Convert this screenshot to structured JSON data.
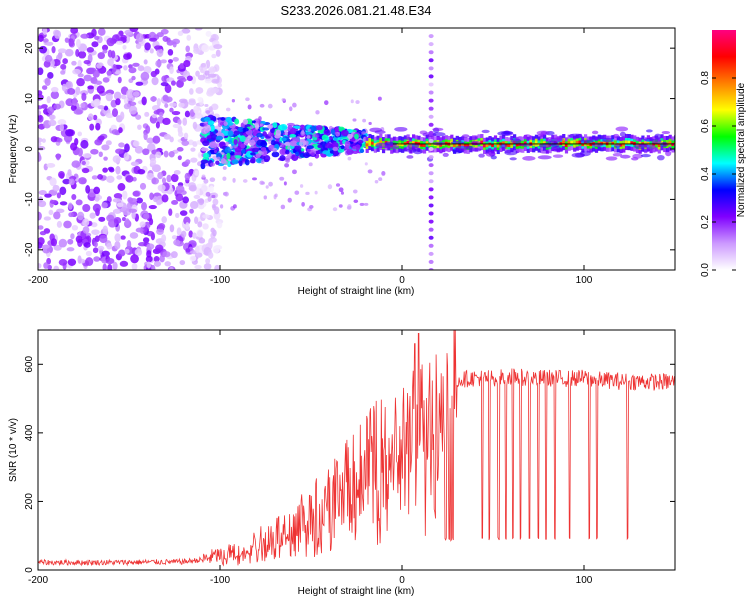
{
  "figure_title": "S233.2026.081.21.48.E34",
  "chart_data": [
    {
      "type": "heatmap",
      "title": "S233.2026.081.21.48.E34",
      "xlabel": "Height of straight line (km)",
      "ylabel": "Frequency (Hz)",
      "xlim": [
        -200,
        150
      ],
      "ylim": [
        -24,
        24
      ],
      "xticks": [
        -200,
        -100,
        0,
        100
      ],
      "yticks": [
        -20,
        -10,
        0,
        10,
        20
      ],
      "colorbar": {
        "label": "Normalized spectral amplitude",
        "range": [
          0,
          1
        ],
        "ticks": [
          "0.0",
          "0.2",
          "0.4",
          "0.6",
          "0.8"
        ],
        "colors": [
          "#ffffff",
          "#cc99ff",
          "#8000ff",
          "#0000ff",
          "#00ffff",
          "#00ff00",
          "#ffff00",
          "#ff8000",
          "#ff0000",
          "#ff0080"
        ]
      },
      "features": [
        {
          "name": "broadband noise",
          "x_range": [
            -200,
            -115
          ],
          "freq_range": [
            -24,
            24
          ],
          "amplitude": 0.1
        },
        {
          "name": "emerging tone",
          "x_range": [
            -110,
            -20
          ],
          "freq_center": 1.5,
          "amplitude": 0.35
        },
        {
          "name": "steady tone",
          "x_range": [
            -20,
            150
          ],
          "freq_center": 1.0,
          "amplitude": 0.9
        },
        {
          "name": "vertical spike",
          "x": 16,
          "freq_range": [
            -24,
            24
          ],
          "amplitude": 0.15
        }
      ]
    },
    {
      "type": "line",
      "xlabel": "Height of straight line (km)",
      "ylabel": "SNR (10 * v/v)",
      "xlim": [
        -200,
        150
      ],
      "ylim": [
        0,
        700
      ],
      "xticks": [
        -200,
        -100,
        0,
        100
      ],
      "yticks": [
        0,
        200,
        400,
        600
      ],
      "color": "#ee3333",
      "series": [
        {
          "name": "SNR",
          "x": [
            -200,
            -180,
            -160,
            -140,
            -120,
            -110,
            -100,
            -90,
            -80,
            -70,
            -60,
            -50,
            -40,
            -30,
            -20,
            -10,
            0,
            10,
            20,
            25,
            28,
            30,
            40,
            50,
            60,
            70,
            80,
            90,
            100,
            110,
            120,
            130,
            140,
            150
          ],
          "values": [
            22,
            22,
            22,
            23,
            24,
            30,
            45,
            60,
            80,
            110,
            140,
            180,
            230,
            280,
            330,
            380,
            400,
            450,
            500,
            520,
            545,
            555,
            560,
            560,
            565,
            560,
            560,
            558,
            560,
            555,
            550,
            550,
            548,
            550
          ],
          "dropouts": [
            {
              "x": 24,
              "y": 80
            },
            {
              "x": 26,
              "y": 80
            },
            {
              "x": 27,
              "y": 80
            },
            {
              "x": 28,
              "y": 80
            },
            {
              "x": 44,
              "y": 90
            },
            {
              "x": 48,
              "y": 90
            },
            {
              "x": 53,
              "y": 90
            },
            {
              "x": 57,
              "y": 90
            },
            {
              "x": 61,
              "y": 90
            },
            {
              "x": 65,
              "y": 90
            },
            {
              "x": 70,
              "y": 90
            },
            {
              "x": 75,
              "y": 90
            },
            {
              "x": 79,
              "y": 90
            },
            {
              "x": 84,
              "y": 90
            },
            {
              "x": 92,
              "y": 90
            },
            {
              "x": 103,
              "y": 90
            },
            {
              "x": 107,
              "y": 90
            },
            {
              "x": 124,
              "y": 90
            }
          ],
          "spikes": [
            {
              "x": 9,
              "y": 690
            },
            {
              "x": 7,
              "y": 660
            }
          ]
        }
      ]
    }
  ]
}
